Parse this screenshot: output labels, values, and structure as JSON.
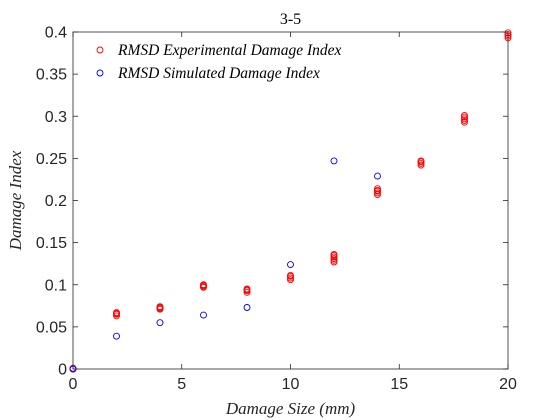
{
  "chart_data": {
    "type": "scatter",
    "title": "3-5",
    "xlabel": "Damage Size (mm)",
    "ylabel": "Damage Index",
    "xlim": [
      0,
      20
    ],
    "ylim": [
      0,
      0.4
    ],
    "xticks": [
      0,
      5,
      10,
      15,
      20
    ],
    "yticks": [
      0,
      0.05,
      0.1,
      0.15,
      0.2,
      0.25,
      0.3,
      0.35,
      0.4
    ],
    "xtick_labels": [
      "0",
      "5",
      "10",
      "15",
      "20"
    ],
    "ytick_labels": [
      "0",
      "0.05",
      "0.1",
      "0.15",
      "0.2",
      "0.25",
      "0.3",
      "0.35",
      "0.4"
    ],
    "grid": false,
    "legend_position": "top-left",
    "series": [
      {
        "name": "RMSD Experimental Damage Index",
        "color": "#ff0000",
        "marker": "circle-open",
        "points": [
          [
            0,
            0.0
          ],
          [
            0,
            0.001
          ],
          [
            2,
            0.063
          ],
          [
            2,
            0.065
          ],
          [
            2,
            0.066
          ],
          [
            2,
            0.067
          ],
          [
            4,
            0.071
          ],
          [
            4,
            0.072
          ],
          [
            4,
            0.073
          ],
          [
            4,
            0.074
          ],
          [
            6,
            0.097
          ],
          [
            6,
            0.098
          ],
          [
            6,
            0.099
          ],
          [
            6,
            0.1
          ],
          [
            8,
            0.091
          ],
          [
            8,
            0.093
          ],
          [
            8,
            0.094
          ],
          [
            8,
            0.095
          ],
          [
            10,
            0.106
          ],
          [
            10,
            0.108
          ],
          [
            10,
            0.11
          ],
          [
            10,
            0.111
          ],
          [
            12,
            0.127
          ],
          [
            12,
            0.129
          ],
          [
            12,
            0.131
          ],
          [
            12,
            0.133
          ],
          [
            12,
            0.135
          ],
          [
            12,
            0.136
          ],
          [
            14,
            0.207
          ],
          [
            14,
            0.209
          ],
          [
            14,
            0.211
          ],
          [
            14,
            0.212
          ],
          [
            14,
            0.214
          ],
          [
            16,
            0.242
          ],
          [
            16,
            0.244
          ],
          [
            16,
            0.246
          ],
          [
            16,
            0.247
          ],
          [
            18,
            0.293
          ],
          [
            18,
            0.295
          ],
          [
            18,
            0.297
          ],
          [
            18,
            0.299
          ],
          [
            18,
            0.301
          ],
          [
            20,
            0.393
          ],
          [
            20,
            0.395
          ],
          [
            20,
            0.397
          ],
          [
            20,
            0.399
          ]
        ]
      },
      {
        "name": "RMSD Simulated Damage Index",
        "color": "#0000ff",
        "marker": "circle-open",
        "points": [
          [
            0,
            0.0
          ],
          [
            2,
            0.039
          ],
          [
            4,
            0.055
          ],
          [
            6,
            0.064
          ],
          [
            8,
            0.073
          ],
          [
            10,
            0.124
          ],
          [
            12,
            0.247
          ],
          [
            14,
            0.229
          ]
        ]
      }
    ]
  }
}
